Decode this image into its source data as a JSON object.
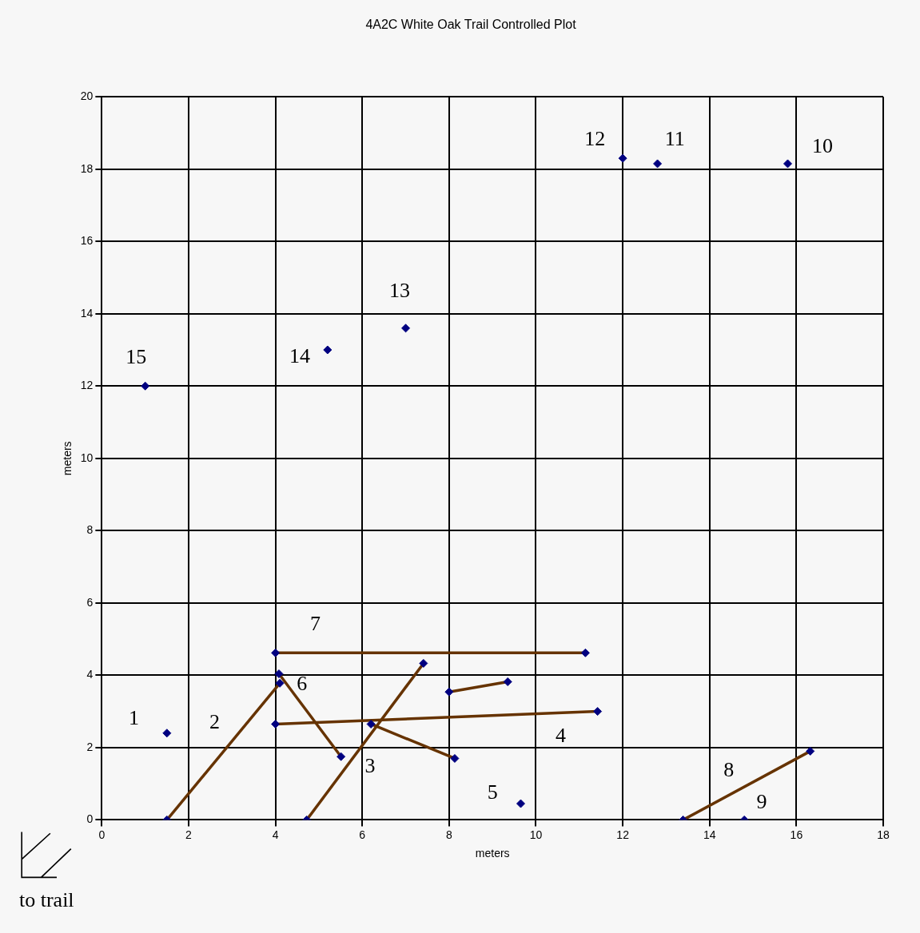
{
  "chart_data": {
    "type": "scatter",
    "title": "4A2C White Oak Trail Controlled Plot",
    "xlabel": "meters",
    "ylabel": "meters",
    "xlim": [
      0,
      18
    ],
    "xticks": [
      0,
      2,
      4,
      6,
      8,
      10,
      12,
      14,
      16,
      18
    ],
    "ylim": [
      0,
      20
    ],
    "yticks": [
      0,
      2,
      4,
      6,
      8,
      10,
      12,
      14,
      16,
      18,
      20
    ],
    "grid": true,
    "marker": "diamond",
    "series": [
      {
        "color": "#000080",
        "x": [
          1.5,
          1.0,
          5.2,
          7.0,
          12.0,
          12.8,
          15.8,
          9.65,
          14.8,
          1.5,
          4.1,
          4.08,
          5.51,
          4.72,
          7.41,
          4.0,
          11.14,
          4.0,
          11.42,
          6.2,
          8.13,
          8.0,
          9.35,
          13.39,
          16.32
        ],
        "values": [
          2.4,
          12.0,
          13.0,
          13.6,
          18.3,
          18.15,
          18.15,
          0.45,
          0.0,
          0.0,
          3.78,
          4.04,
          1.75,
          0.0,
          4.33,
          4.62,
          4.62,
          2.65,
          3.0,
          2.65,
          1.7,
          3.54,
          3.82,
          0.0,
          1.9
        ]
      },
      {
        "type": "line",
        "color": "#663300",
        "marker": "none",
        "x": [
          1.5,
          4.1
        ],
        "values": [
          0.0,
          3.78
        ]
      },
      {
        "type": "line",
        "color": "#663300",
        "marker": "none",
        "x": [
          4.08,
          5.51
        ],
        "values": [
          4.04,
          1.75
        ]
      },
      {
        "type": "line",
        "color": "#663300",
        "marker": "none",
        "x": [
          4.72,
          7.41
        ],
        "values": [
          0.0,
          4.33
        ]
      },
      {
        "type": "line",
        "color": "#663300",
        "marker": "none",
        "x": [
          4.0,
          11.14
        ],
        "values": [
          4.62,
          4.62
        ]
      },
      {
        "type": "line",
        "color": "#663300",
        "marker": "none",
        "x": [
          4.0,
          11.42
        ],
        "values": [
          2.65,
          3.0
        ]
      },
      {
        "type": "line",
        "color": "#663300",
        "marker": "none",
        "x": [
          6.2,
          8.13
        ],
        "values": [
          2.65,
          1.7
        ]
      },
      {
        "type": "line",
        "color": "#663300",
        "marker": "none",
        "x": [
          8.0,
          9.35
        ],
        "values": [
          3.54,
          3.82
        ]
      },
      {
        "type": "line",
        "color": "#663300",
        "marker": "none",
        "x": [
          13.39,
          16.32
        ],
        "values": [
          0.0,
          1.9
        ]
      }
    ],
    "annotations": [
      "1",
      "2",
      "3",
      "4",
      "5",
      "6",
      "7",
      "8",
      "9",
      "10",
      "11",
      "12",
      "13",
      "14",
      "15",
      "to trail"
    ]
  }
}
